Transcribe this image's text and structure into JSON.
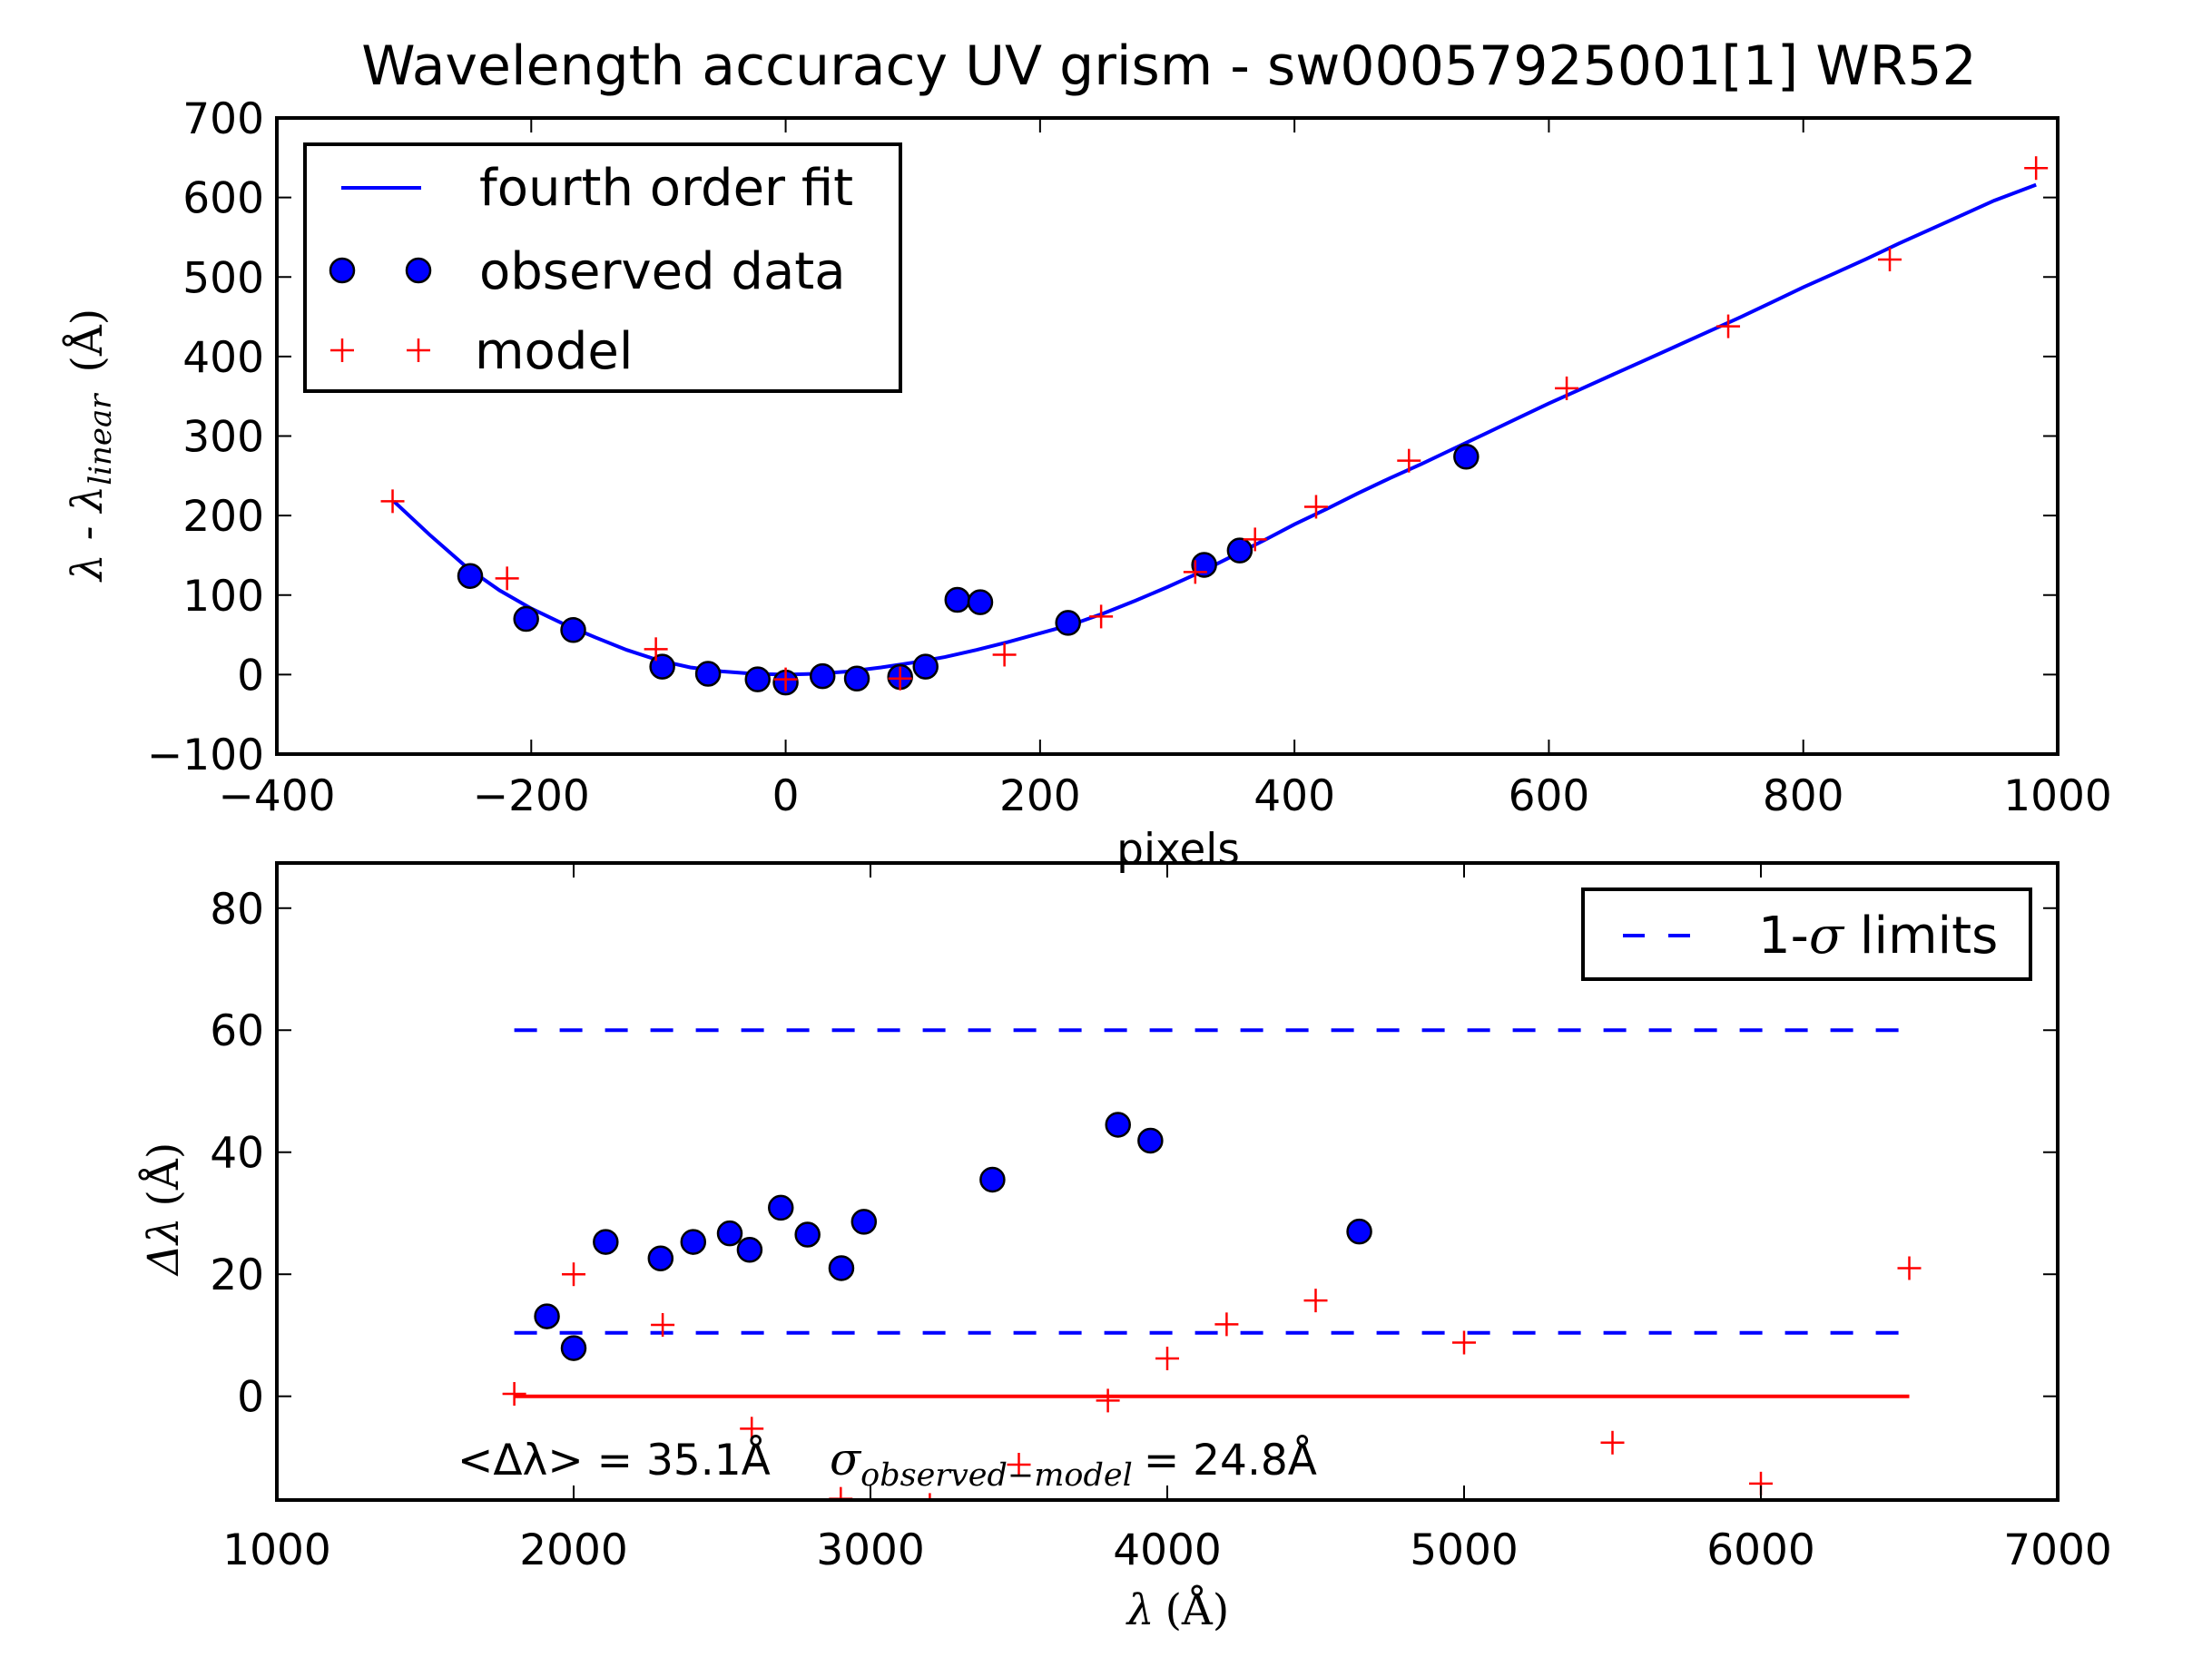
{
  "colors": {
    "fit": "#0000ff",
    "observed": "#0000ff",
    "model": "#ff0000",
    "zero_line": "#ff0000",
    "limits": "#0000ff",
    "axis": "#000000"
  },
  "chart_data": [
    {
      "type": "line",
      "title": "Wavelength accuracy UV grism - sw00057925001[1] WR52",
      "xlabel": "pixels",
      "ylabel": {
        "main": "λ - λ",
        "subscript": "linear",
        "unit": "(Å)"
      },
      "xlim": [
        -400,
        1000
      ],
      "ylim": [
        -100,
        700
      ],
      "xticks": [
        -400,
        -200,
        0,
        200,
        400,
        600,
        800,
        1000
      ],
      "xtick_labels": [
        "−400",
        "−200",
        "0",
        "200",
        "400",
        "600",
        "800",
        "1000"
      ],
      "yticks": [
        -100,
        0,
        100,
        200,
        300,
        400,
        500,
        600,
        700
      ],
      "ytick_labels": [
        "−100",
        "0",
        "100",
        "200",
        "300",
        "400",
        "500",
        "600",
        "700"
      ],
      "grid": false,
      "legend": {
        "placement": "upper-left",
        "entries": [
          {
            "label": "fourth order fit",
            "marker": "line"
          },
          {
            "label": "observed data",
            "marker": "circle"
          },
          {
            "label": "model",
            "marker": "plus"
          }
        ]
      },
      "series": [
        {
          "name": "fourth order fit",
          "style": "line",
          "x": [
            -308,
            -280,
            -250,
            -225,
            -200,
            -175,
            -150,
            -125,
            -100,
            -75,
            -50,
            -25,
            0,
            25,
            50,
            75,
            100,
            125,
            150,
            175,
            200,
            225,
            250,
            275,
            300,
            325,
            350,
            375,
            400,
            425,
            450,
            475,
            500,
            525,
            550,
            575,
            600,
            625,
            650,
            675,
            700,
            725,
            750,
            775,
            800,
            825,
            850,
            875,
            900,
            925,
            950,
            983
          ],
          "y": [
            218,
            176,
            134,
            106,
            83,
            64,
            47,
            31,
            18,
            9,
            4,
            1,
            0,
            1,
            4,
            9,
            15,
            22,
            31,
            41,
            52,
            63,
            77,
            93,
            110,
            128,
            148,
            168,
            189,
            208,
            228,
            247,
            265,
            284,
            303,
            322,
            341,
            359,
            377,
            395,
            413,
            431,
            449,
            468,
            487,
            505,
            523,
            542,
            560,
            578,
            596,
            616
          ]
        },
        {
          "name": "observed data",
          "style": "circle",
          "x": [
            -248,
            -204,
            -167,
            -97,
            -61,
            -22,
            0,
            29,
            56,
            90,
            110,
            135,
            153,
            222,
            329,
            357,
            535
          ],
          "y": [
            124,
            70,
            56,
            10,
            1,
            -6,
            -10,
            -2,
            -5,
            -3,
            10,
            94,
            91,
            65,
            138,
            156,
            274
          ]
        },
        {
          "name": "model",
          "style": "plus",
          "x": [
            -309,
            -219,
            -102,
            0,
            90,
            172,
            248,
            322,
            369,
            417,
            490,
            614,
            741,
            868,
            983
          ],
          "y": [
            218,
            121,
            32,
            -6,
            -5,
            25,
            73,
            129,
            170,
            211,
            269,
            360,
            438,
            522,
            637
          ]
        }
      ]
    },
    {
      "type": "scatter",
      "title": "",
      "xlabel": {
        "main": "λ",
        "unit": "(Å)"
      },
      "ylabel": {
        "main": "Δλ",
        "unit": "(Å)"
      },
      "xlim": [
        1000,
        7000
      ],
      "ylim": [
        -17,
        87.4
      ],
      "xticks": [
        1000,
        2000,
        3000,
        4000,
        5000,
        6000,
        7000
      ],
      "xtick_labels": [
        "1000",
        "2000",
        "3000",
        "4000",
        "5000",
        "6000",
        "7000"
      ],
      "yticks": [
        0,
        20,
        40,
        60,
        80
      ],
      "ytick_labels": [
        "0",
        "20",
        "40",
        "60",
        "80"
      ],
      "grid": false,
      "legend": {
        "placement": "upper-right",
        "entries": [
          {
            "label_prefix": "1-",
            "label_symbol": "σ",
            "label_suffix": " limits",
            "marker": "dashed-line"
          }
        ]
      },
      "annotations": {
        "mean_label": "<Δλ> = 35.1Å",
        "sigma_symbol": "σ",
        "sigma_subscript": "observed−model",
        "sigma_value": "= 24.8Å"
      },
      "series": [
        {
          "name": "observed data",
          "style": "circle",
          "x": [
            1910,
            2000,
            2108,
            2293,
            2403,
            2526,
            2593,
            2698,
            2788,
            2902,
            2978,
            3411,
            3834,
            3943,
            4647
          ],
          "y": [
            13.1,
            7.9,
            25.3,
            22.6,
            25.3,
            26.7,
            24.0,
            30.9,
            26.5,
            21.0,
            28.6,
            35.5,
            44.5,
            41.9,
            27.0
          ]
        },
        {
          "name": "model",
          "style": "plus",
          "x": [
            1800,
            2000,
            2300,
            2600,
            2900,
            3200,
            3500,
            3800,
            4000,
            4200,
            4500,
            5000,
            5500,
            6000,
            6500
          ],
          "y": [
            0.4,
            20.0,
            11.7,
            -5.3,
            -16.8,
            -17.8,
            -11.2,
            -0.7,
            6.2,
            11.8,
            15.7,
            8.8,
            -7.6,
            -14.3,
            21.0
          ]
        },
        {
          "name": "zero line",
          "style": "solid-line",
          "x": [
            1800,
            6500
          ],
          "y": [
            0,
            0
          ]
        },
        {
          "name": "1-σ limits",
          "style": "dashed-line",
          "segments": [
            {
              "x": [
                1800,
                6500
              ],
              "y": [
                60.0,
                60.0
              ]
            },
            {
              "x": [
                1800,
                6500
              ],
              "y": [
                10.4,
                10.4
              ]
            }
          ]
        }
      ]
    }
  ]
}
